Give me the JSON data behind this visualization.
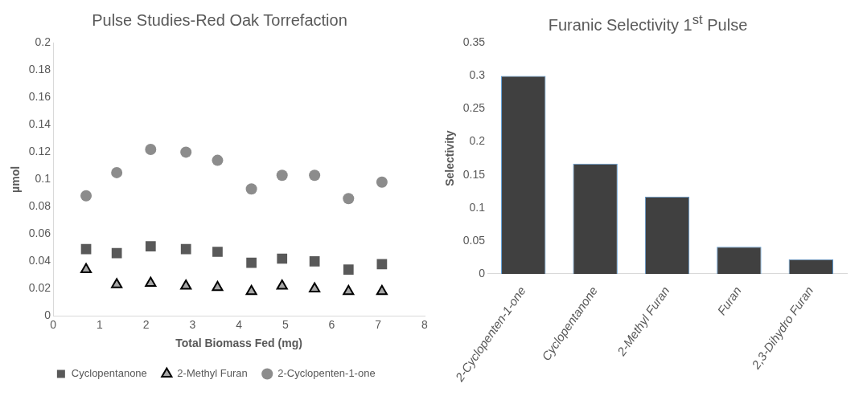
{
  "chart_data": [
    {
      "type": "scatter",
      "title": "Pulse Studies-Red Oak Torrefaction",
      "xlabel": "Total Biomass Fed (mg)",
      "ylabel": "µmol",
      "xlim": [
        0,
        8
      ],
      "xticks": [
        0,
        1,
        2,
        3,
        4,
        5,
        6,
        7,
        8
      ],
      "ylim": [
        0,
        0.2
      ],
      "yticks": [
        0,
        0.02,
        0.04,
        0.06,
        0.08,
        0.1,
        0.12,
        0.14,
        0.16,
        0.18,
        0.2
      ],
      "grid": false,
      "legend": "bottom",
      "x": [
        0.71,
        1.37,
        2.1,
        2.86,
        3.54,
        4.27,
        4.93,
        5.63,
        6.36,
        7.08
      ],
      "series": [
        {
          "name": "Cyclopentanone",
          "color": "#595959",
          "marker": "square",
          "values": [
            0.049,
            0.046,
            0.051,
            0.049,
            0.047,
            0.039,
            0.042,
            0.04,
            0.034,
            0.038
          ]
        },
        {
          "name": "2-Methyl Furan",
          "color": "#a6a6a6",
          "marker": "triangle",
          "values": [
            0.034,
            0.023,
            0.024,
            0.022,
            0.021,
            0.018,
            0.022,
            0.02,
            0.018,
            0.018
          ]
        },
        {
          "name": "2-Cyclopenten-1-one",
          "color": "#8c8c8c",
          "marker": "circle",
          "values": [
            0.088,
            0.105,
            0.122,
            0.12,
            0.114,
            0.093,
            0.103,
            0.103,
            0.086,
            0.098
          ]
        }
      ]
    },
    {
      "type": "bar",
      "title": "Furanic Selectivity 1$^{st}$ Pulse",
      "ylabel": "Selectivity",
      "categories": [
        "2-Cyclopenten-1-one",
        "Cyclopentanone",
        "2-Methyl Furan",
        "Furan",
        "2,3-Dihydro Furan"
      ],
      "values": [
        0.3,
        0.167,
        0.117,
        0.041,
        0.022
      ],
      "color": "#404040",
      "ylim": [
        0,
        0.35
      ],
      "yticks": [
        0,
        0.05,
        0.1,
        0.15,
        0.2,
        0.25,
        0.3,
        0.35
      ],
      "grid": false,
      "legend": false
    }
  ]
}
